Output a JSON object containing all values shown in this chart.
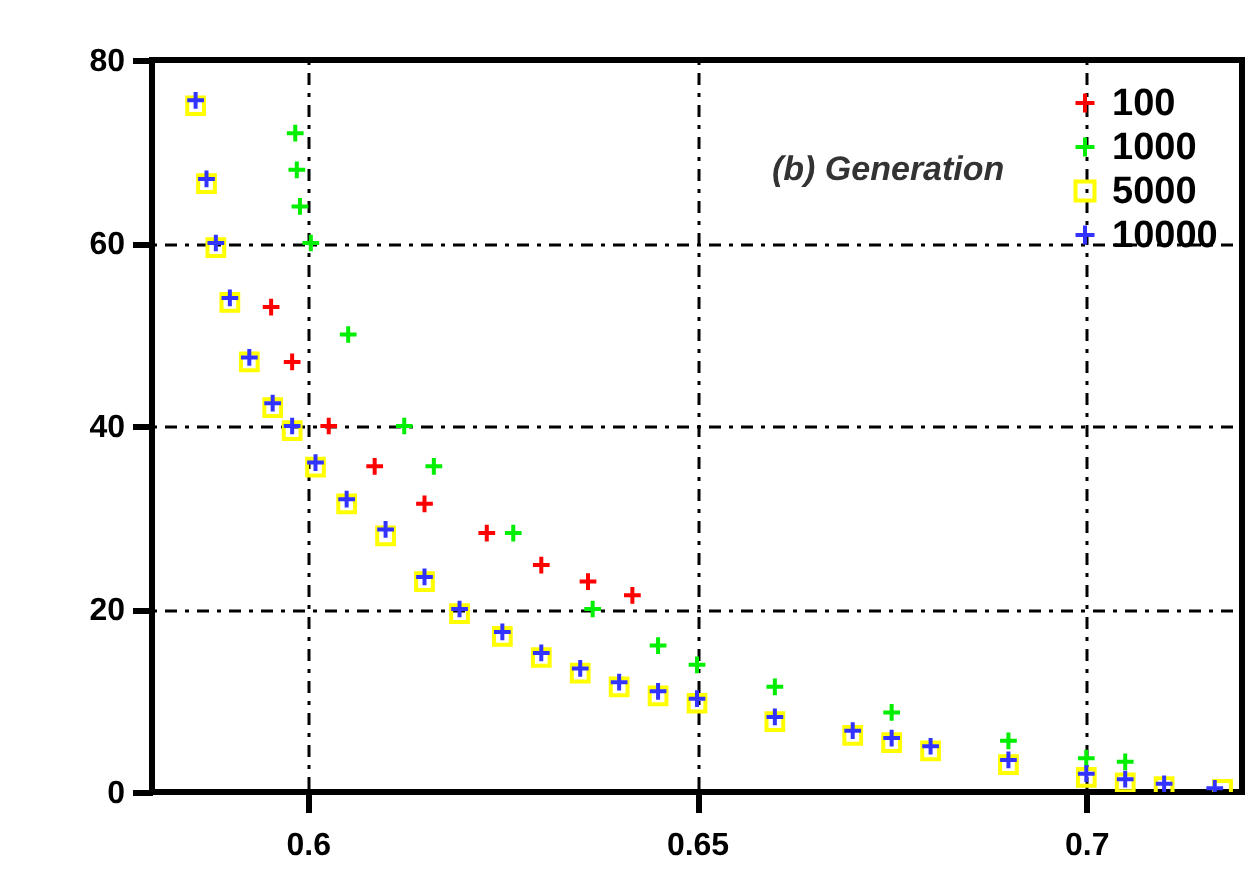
{
  "chart_data": {
    "type": "scatter",
    "legend_title": "(b) Generation",
    "legend": "top right",
    "grid": true,
    "xlim": [
      0.58,
      0.72
    ],
    "xticks": [
      0.6,
      0.65,
      0.7
    ],
    "ylim": [
      0,
      80
    ],
    "yticks": [
      0,
      20,
      40,
      60,
      80
    ],
    "series": [
      {
        "name": "100",
        "color": "#ff0000",
        "marker": "cross",
        "x": [
          0.5953,
          0.598,
          0.6027,
          0.6086,
          0.615,
          0.623,
          0.63,
          0.636,
          0.6417
        ],
        "values": [
          53,
          47,
          40,
          35.6,
          31.5,
          28.3,
          24.8,
          23,
          21.5
        ]
      },
      {
        "name": "1000",
        "color": "#00ee00",
        "marker": "cross",
        "x": [
          0.5984,
          0.5986,
          0.599,
          0.6004,
          0.6052,
          0.6124,
          0.6162,
          0.6264,
          0.6366,
          0.645,
          0.65,
          0.66,
          0.675,
          0.69,
          0.7,
          0.705
        ],
        "values": [
          72,
          68,
          64,
          60,
          50,
          40,
          35.6,
          28.3,
          20,
          16,
          13.9,
          11.5,
          8.7,
          5.6,
          3.7,
          3.3
        ]
      },
      {
        "name": "5000",
        "color": "#ffff00",
        "marker": "square",
        "x": [
          0.5856,
          0.587,
          0.5882,
          0.59,
          0.5925,
          0.5955,
          0.598,
          0.601,
          0.605,
          0.61,
          0.615,
          0.6195,
          0.625,
          0.63,
          0.635,
          0.64,
          0.645,
          0.65,
          0.66,
          0.67,
          0.675,
          0.68,
          0.69,
          0.7,
          0.705,
          0.71,
          0.7175
        ],
        "values": [
          75,
          66.5,
          59.5,
          53.5,
          47,
          42,
          39.5,
          35.5,
          31.5,
          28,
          23,
          19.5,
          17,
          14.7,
          13,
          11.5,
          10.5,
          9.7,
          7.7,
          6.2,
          5.4,
          4.5,
          3,
          1.6,
          1,
          0.6,
          0.3
        ]
      },
      {
        "name": "10000",
        "color": "#3333ff",
        "marker": "cross",
        "x": [
          0.5856,
          0.587,
          0.5882,
          0.59,
          0.5925,
          0.5955,
          0.598,
          0.601,
          0.605,
          0.61,
          0.615,
          0.6195,
          0.625,
          0.63,
          0.635,
          0.64,
          0.645,
          0.65,
          0.66,
          0.67,
          0.675,
          0.68,
          0.69,
          0.7,
          0.705,
          0.71,
          0.7165
        ],
        "values": [
          75.6,
          67,
          60,
          54,
          47.5,
          42.5,
          40,
          36,
          32,
          28.7,
          23.5,
          20,
          17.5,
          15.2,
          13.5,
          12,
          11,
          10.2,
          8.2,
          6.7,
          5.9,
          5,
          3.5,
          2,
          1.4,
          0.9,
          0.4
        ]
      }
    ]
  }
}
